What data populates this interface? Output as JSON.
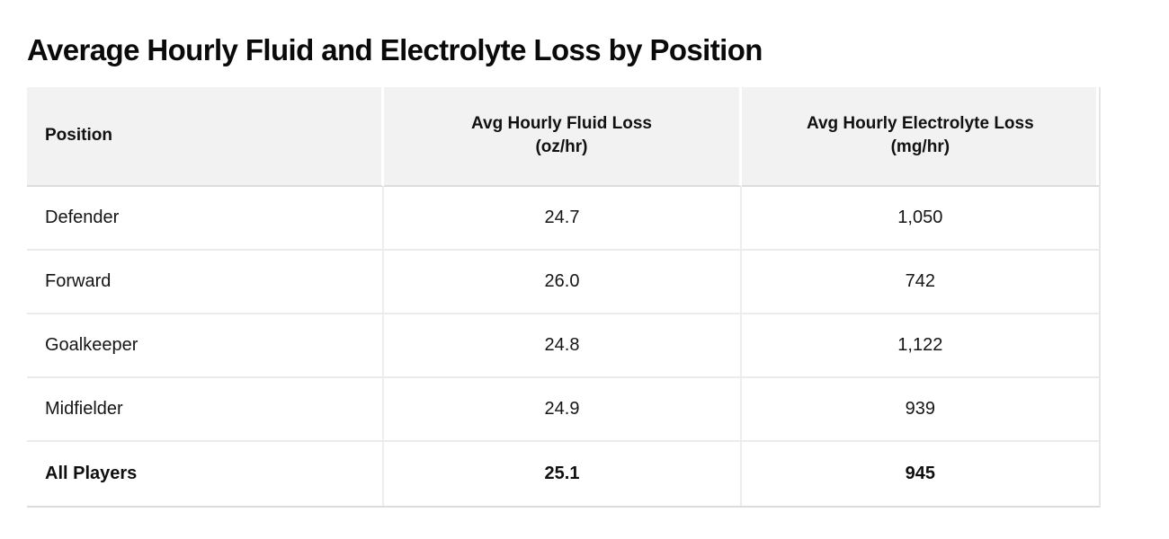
{
  "title": "Average Hourly Fluid and Electrolyte Loss by Position",
  "table": {
    "columns": [
      {
        "label": "Position",
        "unit": ""
      },
      {
        "label": "Avg Hourly Fluid Loss",
        "unit": "(oz/hr)"
      },
      {
        "label": "Avg Hourly Electrolyte Loss",
        "unit": "(mg/hr)"
      }
    ],
    "rows": [
      {
        "position": "Defender",
        "fluid_loss": "24.7",
        "electrolyte_loss": "1,050",
        "emphasis": false
      },
      {
        "position": "Forward",
        "fluid_loss": "26.0",
        "electrolyte_loss": "742",
        "emphasis": false
      },
      {
        "position": "Goalkeeper",
        "fluid_loss": "24.8",
        "electrolyte_loss": "1,122",
        "emphasis": false
      },
      {
        "position": "Midfielder",
        "fluid_loss": "24.9",
        "electrolyte_loss": "939",
        "emphasis": false
      },
      {
        "position": "All Players",
        "fluid_loss": "25.1",
        "electrolyte_loss": "945",
        "emphasis": true
      }
    ]
  },
  "chart_data": {
    "type": "table",
    "title": "Average Hourly Fluid and Electrolyte Loss by Position",
    "columns": [
      "Position",
      "Avg Hourly Fluid Loss (oz/hr)",
      "Avg Hourly Electrolyte Loss (mg/hr)"
    ],
    "rows": [
      [
        "Defender",
        24.7,
        1050
      ],
      [
        "Forward",
        26.0,
        742
      ],
      [
        "Goalkeeper",
        24.8,
        1122
      ],
      [
        "Midfielder",
        24.9,
        939
      ],
      [
        "All Players",
        25.1,
        945
      ]
    ]
  },
  "colors": {
    "header_background": "#f2f2f2",
    "row_border": "#ebebeb",
    "strong_border": "#dcdcdc",
    "text": "#141414"
  }
}
